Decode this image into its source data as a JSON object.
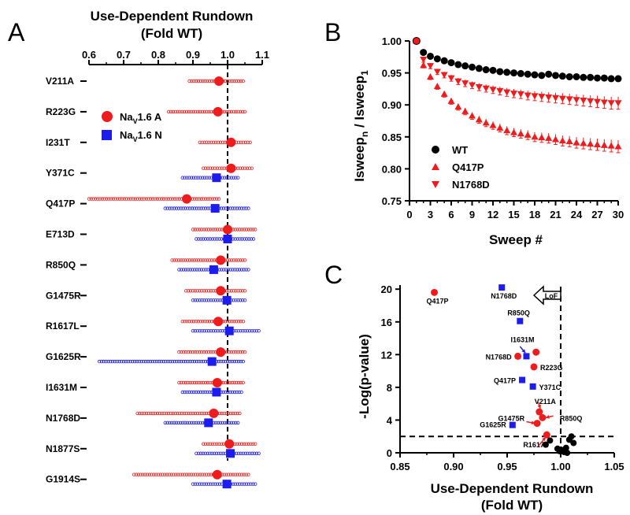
{
  "panel_labels": [
    "A",
    "B",
    "C"
  ],
  "chart_data": [
    {
      "panel": "A",
      "type": "scatter",
      "title": "Use-Dependent Rundown",
      "subtitle": "(Fold WT)",
      "x_ticks": [
        "0.6",
        "0.7",
        "0.8",
        "0.9",
        "1.0",
        "1.1"
      ],
      "xlim": [
        0.6,
        1.1
      ],
      "reference_line": 1.0,
      "legend": [
        {
          "label": "NaV1.6 A",
          "label_main": "Na",
          "label_sub": "V",
          "label_rest": "1.6 A",
          "color": "#ee1c1c",
          "marker": "circle"
        },
        {
          "label": "NaV1.6 N",
          "label_main": "Na",
          "label_sub": "V",
          "label_rest": "1.6 N",
          "color": "#1c1cee",
          "marker": "square"
        }
      ],
      "mutants": [
        {
          "name": "V211A",
          "A": {
            "mean": 0.975,
            "spread": [
              0.89,
              1.045
            ]
          },
          "N": null
        },
        {
          "name": "R223G",
          "A": {
            "mean": 0.972,
            "spread": [
              0.83,
              1.05
            ]
          },
          "N": null
        },
        {
          "name": "I231T",
          "A": {
            "mean": 1.01,
            "spread": [
              0.92,
              1.065
            ]
          },
          "N": null
        },
        {
          "name": "Y371C",
          "A": {
            "mean": 1.01,
            "spread": [
              0.93,
              1.07
            ]
          },
          "N": {
            "mean": 0.968,
            "spread": [
              0.87,
              1.03
            ]
          }
        },
        {
          "name": "Q417P",
          "A": {
            "mean": 0.882,
            "spread": [
              0.6,
              0.975
            ]
          },
          "N": {
            "mean": 0.964,
            "spread": [
              0.82,
              1.06
            ]
          }
        },
        {
          "name": "E713D",
          "A": {
            "mean": 1.0,
            "spread": [
              0.9,
              1.08
            ]
          },
          "N": {
            "mean": 1.0,
            "spread": [
              0.91,
              1.075
            ]
          }
        },
        {
          "name": "R850Q",
          "A": {
            "mean": 0.98,
            "spread": [
              0.84,
              1.05
            ]
          },
          "N": {
            "mean": 0.96,
            "spread": [
              0.86,
              1.06
            ]
          }
        },
        {
          "name": "G1475R",
          "A": {
            "mean": 0.98,
            "spread": [
              0.88,
              1.05
            ]
          },
          "N": {
            "mean": 0.998,
            "spread": [
              0.9,
              1.05
            ]
          }
        },
        {
          "name": "R1617L",
          "A": {
            "mean": 0.973,
            "spread": [
              0.87,
              1.045
            ]
          },
          "N": {
            "mean": 1.005,
            "spread": [
              0.9,
              1.09
            ]
          }
        },
        {
          "name": "G1625R",
          "A": {
            "mean": 0.98,
            "spread": [
              0.86,
              1.05
            ]
          },
          "N": {
            "mean": 0.955,
            "spread": [
              0.63,
              1.045
            ]
          }
        },
        {
          "name": "I1631M",
          "A": {
            "mean": 0.97,
            "spread": [
              0.86,
              1.045
            ]
          },
          "N": {
            "mean": 0.968,
            "spread": [
              0.87,
              1.04
            ]
          }
        },
        {
          "name": "N1768D",
          "A": {
            "mean": 0.96,
            "spread": [
              0.74,
              1.035
            ]
          },
          "N": {
            "mean": 0.945,
            "spread": [
              0.82,
              1.03
            ]
          }
        },
        {
          "name": "N1877S",
          "A": {
            "mean": 1.005,
            "spread": [
              0.93,
              1.08
            ]
          },
          "N": {
            "mean": 1.008,
            "spread": [
              0.91,
              1.09
            ]
          }
        },
        {
          "name": "G1914S",
          "A": {
            "mean": 0.97,
            "spread": [
              0.73,
              1.06
            ]
          },
          "N": {
            "mean": 0.998,
            "spread": [
              0.9,
              1.08
            ]
          }
        }
      ]
    },
    {
      "panel": "B",
      "type": "line",
      "ylabel": "Isweepn / Isweep1",
      "ylabel_parts": {
        "a": "Isweep",
        "a_sub": "n",
        "sep": " / ",
        "b": "Isweep",
        "b_sub": "1"
      },
      "xlabel": "Sweep #",
      "x_ticks": [
        "0",
        "3",
        "6",
        "9",
        "12",
        "15",
        "18",
        "21",
        "24",
        "27",
        "30"
      ],
      "y_ticks": [
        "0.75",
        "0.80",
        "0.85",
        "0.90",
        "0.95",
        "1.00"
      ],
      "xlim": [
        0,
        30
      ],
      "ylim": [
        0.75,
        1.0
      ],
      "x": [
        1,
        2,
        3,
        4,
        5,
        6,
        7,
        8,
        9,
        10,
        11,
        12,
        13,
        14,
        15,
        16,
        17,
        18,
        19,
        20,
        21,
        22,
        23,
        24,
        25,
        26,
        27,
        28,
        29,
        30
      ],
      "series": [
        {
          "name": "WT",
          "color": "#000000",
          "marker": "circle",
          "values": [
            1.0,
            0.982,
            0.976,
            0.972,
            0.969,
            0.966,
            0.963,
            0.961,
            0.959,
            0.957,
            0.955,
            0.954,
            0.952,
            0.951,
            0.95,
            0.949,
            0.948,
            0.947,
            0.946,
            0.948,
            0.946,
            0.945,
            0.944,
            0.944,
            0.943,
            0.943,
            0.942,
            0.942,
            0.941,
            0.941
          ]
        },
        {
          "name": "Q417P",
          "color": "#ee1c1c",
          "marker": "triangle-up",
          "values": [
            1.0,
            0.962,
            0.944,
            0.929,
            0.917,
            0.906,
            0.897,
            0.89,
            0.883,
            0.877,
            0.872,
            0.868,
            0.864,
            0.86,
            0.857,
            0.855,
            0.853,
            0.85,
            0.849,
            0.848,
            0.846,
            0.844,
            0.843,
            0.841,
            0.84,
            0.839,
            0.838,
            0.837,
            0.836,
            0.835
          ]
        },
        {
          "name": "N1768D",
          "color": "#ee1c1c",
          "marker": "triangle-down",
          "values": [
            1.0,
            0.971,
            0.961,
            0.952,
            0.947,
            0.942,
            0.937,
            0.934,
            0.931,
            0.928,
            0.926,
            0.924,
            0.922,
            0.92,
            0.918,
            0.917,
            0.915,
            0.914,
            0.913,
            0.912,
            0.911,
            0.91,
            0.909,
            0.908,
            0.907,
            0.906,
            0.905,
            0.904,
            0.903,
            0.903
          ]
        }
      ]
    },
    {
      "panel": "C",
      "type": "scatter",
      "xlabel_line1": "Use-Dependent Rundown",
      "xlabel_line2": "(Fold WT)",
      "ylabel": "-Log(p-value)",
      "x_ticks": [
        "0.85",
        "0.90",
        "0.95",
        "1.00",
        "1.05"
      ],
      "y_ticks": [
        "0",
        "4",
        "8",
        "12",
        "16",
        "20"
      ],
      "xlim": [
        0.85,
        1.05
      ],
      "ylim": [
        0,
        20.5
      ],
      "threshold_y": 2,
      "threshold_x": 1.0,
      "lof_label": "LoF",
      "points": [
        {
          "label": "Q417P",
          "x": 0.882,
          "y": 19.6,
          "group": "A"
        },
        {
          "label": "N1768D",
          "x": 0.945,
          "y": 20.2,
          "group": "N"
        },
        {
          "label": "R850Q",
          "x": 0.962,
          "y": 16.1,
          "group": "N"
        },
        {
          "label": "I1631M",
          "x": 0.968,
          "y": 11.8,
          "group": "N"
        },
        {
          "label": "N1768D",
          "x": 0.96,
          "y": 11.8,
          "group": "A"
        },
        {
          "label": "",
          "x": 0.977,
          "y": 12.3,
          "group": "A"
        },
        {
          "label": "R223G",
          "x": 0.975,
          "y": 10.5,
          "group": "A"
        },
        {
          "label": "Q417P",
          "x": 0.964,
          "y": 8.9,
          "group": "N"
        },
        {
          "label": "Y371C",
          "x": 0.974,
          "y": 8.1,
          "group": "N"
        },
        {
          "label": "V211A",
          "x": 0.98,
          "y": 5.0,
          "group": "A"
        },
        {
          "label": "R850Q",
          "x": 0.983,
          "y": 4.3,
          "group": "A"
        },
        {
          "label": "G1475R",
          "x": 0.978,
          "y": 3.6,
          "group": "A"
        },
        {
          "label": "G1625R",
          "x": 0.955,
          "y": 3.4,
          "group": "N"
        },
        {
          "label": "R1617L",
          "x": 0.987,
          "y": 2.2,
          "group": "A"
        },
        {
          "label": "",
          "x": 0.99,
          "y": 1.5,
          "group": "ns"
        },
        {
          "label": "",
          "x": 0.986,
          "y": 1.0,
          "group": "ns"
        },
        {
          "label": "",
          "x": 0.997,
          "y": 0.5,
          "group": "ns"
        },
        {
          "label": "",
          "x": 0.999,
          "y": 0.2,
          "group": "ns"
        },
        {
          "label": "",
          "x": 1.003,
          "y": 0.1,
          "group": "ns"
        },
        {
          "label": "",
          "x": 1.005,
          "y": 0.6,
          "group": "ns"
        },
        {
          "label": "",
          "x": 1.008,
          "y": 1.6,
          "group": "ns"
        },
        {
          "label": "",
          "x": 1.01,
          "y": 2.0,
          "group": "ns"
        },
        {
          "label": "",
          "x": 1.012,
          "y": 1.2,
          "group": "ns"
        },
        {
          "label": "",
          "x": 1.0,
          "y": 0.4,
          "group": "ns"
        },
        {
          "label": "",
          "x": 1.006,
          "y": 0.0,
          "group": "ns"
        }
      ]
    }
  ],
  "colors": {
    "red": "#ee1c1c",
    "blue": "#1c1cee",
    "black": "#000000"
  }
}
